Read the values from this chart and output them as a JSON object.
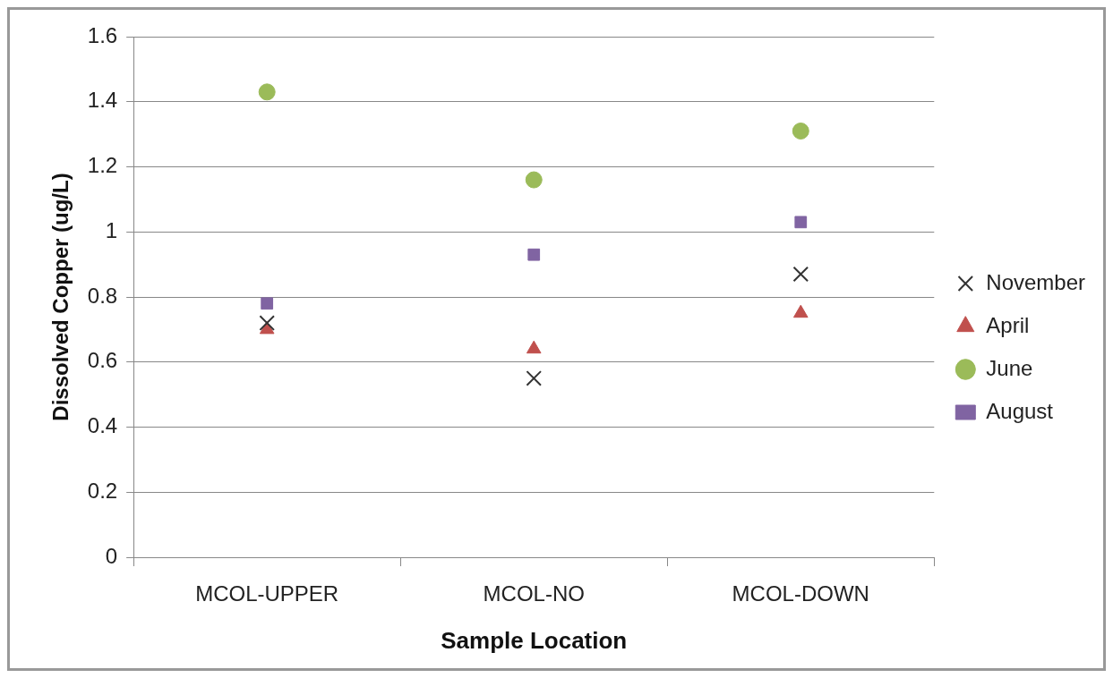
{
  "chart_data": {
    "type": "scatter",
    "xlabel": "Sample Location",
    "ylabel": "Dissolved Copper (ug/L)",
    "categories": [
      "MCOL-UPPER",
      "MCOL-NO",
      "MCOL-DOWN"
    ],
    "series": [
      {
        "name": "November",
        "color": "#333333",
        "marker": "cross",
        "values": [
          0.72,
          0.55,
          0.87
        ]
      },
      {
        "name": "April",
        "color": "#c0504d",
        "marker": "triangle",
        "values": [
          0.7,
          0.64,
          0.75
        ]
      },
      {
        "name": "June",
        "color": "#9bbb59",
        "marker": "circle",
        "values": [
          1.43,
          1.16,
          1.31
        ]
      },
      {
        "name": "August",
        "color": "#8064a2",
        "marker": "square",
        "values": [
          0.78,
          0.93,
          1.03
        ]
      }
    ],
    "ylim": [
      0,
      1.6
    ],
    "yticks": [
      0,
      0.2,
      0.4,
      0.6,
      0.8,
      1,
      1.2,
      1.4,
      1.6
    ],
    "grid": "y",
    "legend": "right"
  }
}
